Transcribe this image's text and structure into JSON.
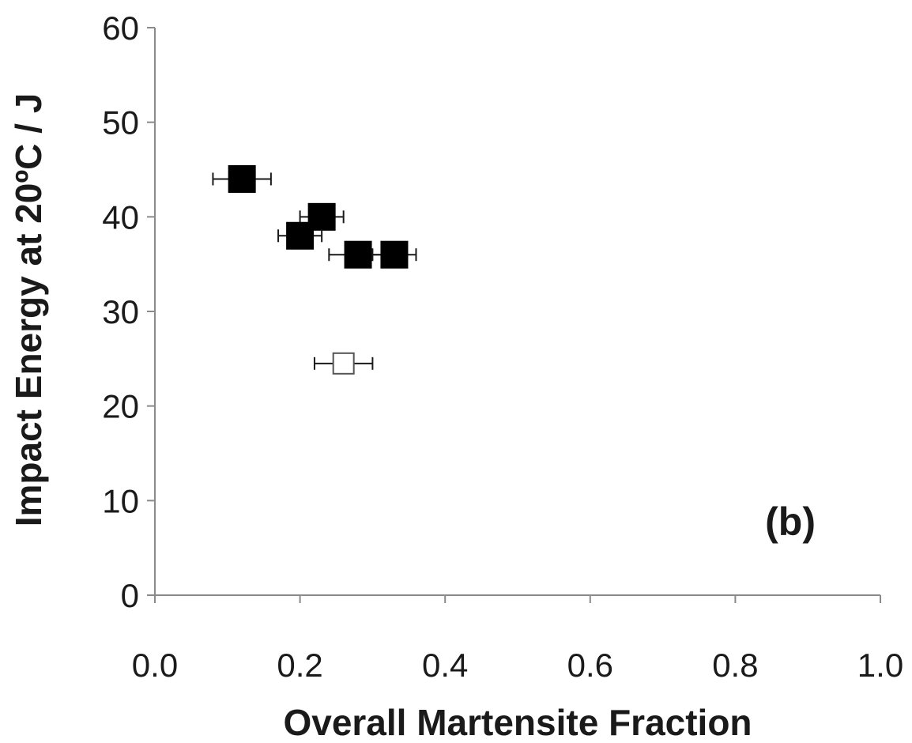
{
  "chart_data": {
    "type": "scatter",
    "title": "",
    "panel_label": "(b)",
    "xlabel": "Overall Martensite Fraction",
    "ylabel": "Impact Energy at 20ºC / J",
    "xlim": [
      0.0,
      1.0
    ],
    "ylim": [
      0,
      60
    ],
    "xticks": [
      "0.0",
      "0.2",
      "0.4",
      "0.6",
      "0.8",
      "1.0"
    ],
    "yticks": [
      "0",
      "10",
      "20",
      "30",
      "40",
      "50",
      "60"
    ],
    "grid": false,
    "legend": "none",
    "series": [
      {
        "marker": "filled-square",
        "color": "#000000",
        "points": [
          {
            "x": 0.12,
            "y": 44,
            "xerr": 0.04
          },
          {
            "x": 0.23,
            "y": 40,
            "xerr": 0.03
          },
          {
            "x": 0.2,
            "y": 38,
            "xerr": 0.03
          },
          {
            "x": 0.28,
            "y": 36,
            "xerr": 0.04
          },
          {
            "x": 0.33,
            "y": 36,
            "xerr": 0.03
          }
        ]
      },
      {
        "marker": "open-square",
        "color": "#555555",
        "points": [
          {
            "x": 0.26,
            "y": 24.5,
            "xerr": 0.04
          }
        ]
      }
    ]
  }
}
